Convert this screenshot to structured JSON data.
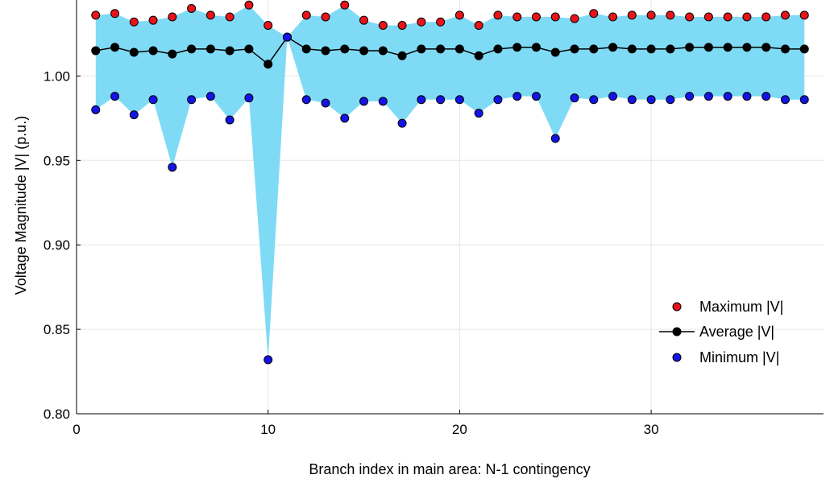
{
  "chart_data": {
    "type": "line",
    "title": "",
    "xlabel": "Branch index in main area: N-1 contingency",
    "ylabel": "Voltage Magnitude |V| (p.u.)",
    "xlim": [
      0,
      39
    ],
    "ylim": [
      0.8,
      1.045
    ],
    "xticks": [
      0,
      10,
      20,
      30
    ],
    "xtick_labels": [
      "0",
      "10",
      "20",
      "30"
    ],
    "yticks": [
      0.8,
      0.85,
      0.9,
      0.95,
      1.0
    ],
    "ytick_labels": [
      "0.80",
      "0.85",
      "0.90",
      "0.95",
      "1.00"
    ],
    "grid": true,
    "legend_position": "bottom-right",
    "band_color": "#7fdbf5",
    "x": [
      1,
      2,
      3,
      4,
      5,
      6,
      7,
      8,
      9,
      10,
      11,
      12,
      13,
      14,
      15,
      16,
      17,
      18,
      19,
      20,
      21,
      22,
      23,
      24,
      25,
      26,
      27,
      28,
      29,
      30,
      31,
      32,
      33,
      34,
      35,
      36,
      37,
      38
    ],
    "series": [
      {
        "name": "Maximum |V|",
        "color": "#e8141a",
        "marker": "circle",
        "line": false,
        "values": [
          1.036,
          1.037,
          1.032,
          1.033,
          1.035,
          1.04,
          1.036,
          1.035,
          1.042,
          1.03,
          1.023,
          1.036,
          1.035,
          1.042,
          1.033,
          1.03,
          1.03,
          1.032,
          1.032,
          1.036,
          1.03,
          1.036,
          1.035,
          1.035,
          1.035,
          1.034,
          1.037,
          1.035,
          1.036,
          1.036,
          1.036,
          1.035,
          1.035,
          1.035,
          1.035,
          1.035,
          1.036,
          1.036
        ]
      },
      {
        "name": "Average |V|",
        "color": "#000000",
        "marker": "circle",
        "line": true,
        "values": [
          1.015,
          1.017,
          1.014,
          1.015,
          1.013,
          1.016,
          1.016,
          1.015,
          1.016,
          1.007,
          1.023,
          1.016,
          1.015,
          1.016,
          1.015,
          1.015,
          1.012,
          1.016,
          1.016,
          1.016,
          1.012,
          1.016,
          1.017,
          1.017,
          1.014,
          1.016,
          1.016,
          1.017,
          1.016,
          1.016,
          1.016,
          1.017,
          1.017,
          1.017,
          1.017,
          1.017,
          1.016,
          1.016
        ]
      },
      {
        "name": "Minimum |V|",
        "color": "#1414e6",
        "marker": "circle",
        "line": false,
        "values": [
          0.98,
          0.988,
          0.977,
          0.986,
          0.946,
          0.986,
          0.988,
          0.974,
          0.987,
          0.832,
          1.023,
          0.986,
          0.984,
          0.975,
          0.985,
          0.985,
          0.972,
          0.986,
          0.986,
          0.986,
          0.978,
          0.986,
          0.988,
          0.988,
          0.963,
          0.987,
          0.986,
          0.988,
          0.986,
          0.986,
          0.986,
          0.988,
          0.988,
          0.988,
          0.988,
          0.988,
          0.986,
          0.986
        ]
      }
    ]
  }
}
